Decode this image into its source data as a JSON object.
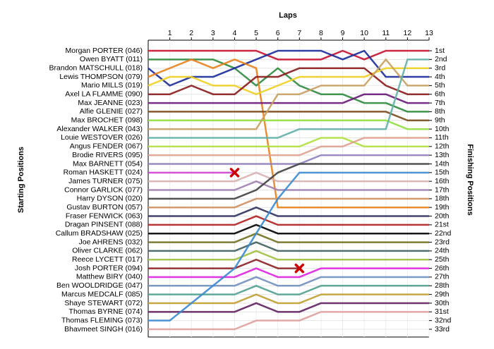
{
  "chart_data": {
    "type": "lapchart",
    "title": "Laps",
    "y_label": "Starting Positions",
    "y2_label": "Finishing Positions",
    "x": [
      0,
      1,
      2,
      3,
      4,
      5,
      6,
      7,
      8,
      9,
      10,
      11,
      12,
      13
    ],
    "xlim": [
      0,
      13
    ],
    "xticks": [
      1,
      2,
      3,
      4,
      5,
      6,
      7,
      8,
      9,
      10,
      11,
      12,
      13
    ],
    "ylim": [
      33,
      1
    ],
    "grid": true,
    "yticks": [
      {
        "value": 1,
        "label": "1st"
      },
      {
        "value": 2,
        "label": "2nd"
      },
      {
        "value": 3,
        "label": "3rd"
      },
      {
        "value": 4,
        "label": "4th"
      },
      {
        "value": 5,
        "label": "5th"
      },
      {
        "value": 6,
        "label": "6th"
      },
      {
        "value": 7,
        "label": "7th"
      },
      {
        "value": 8,
        "label": "8th"
      },
      {
        "value": 9,
        "label": "9th"
      },
      {
        "value": 10,
        "label": "10th"
      },
      {
        "value": 11,
        "label": "11th"
      },
      {
        "value": 12,
        "label": "12th"
      },
      {
        "value": 13,
        "label": "13th"
      },
      {
        "value": 14,
        "label": "14th"
      },
      {
        "value": 15,
        "label": "15th"
      },
      {
        "value": 16,
        "label": "16th"
      },
      {
        "value": 17,
        "label": "17th"
      },
      {
        "value": 18,
        "label": "18th"
      },
      {
        "value": 19,
        "label": "19th"
      },
      {
        "value": 20,
        "label": "20th"
      },
      {
        "value": 21,
        "label": "21st"
      },
      {
        "value": 22,
        "label": "22nd"
      },
      {
        "value": 23,
        "label": "23rd"
      },
      {
        "value": 24,
        "label": "24th"
      },
      {
        "value": 25,
        "label": "25th"
      },
      {
        "value": 26,
        "label": "26th"
      },
      {
        "value": 27,
        "label": "27th"
      },
      {
        "value": 28,
        "label": "28th"
      },
      {
        "value": 29,
        "label": "29th"
      },
      {
        "value": 30,
        "label": "30th"
      },
      {
        "value": 31,
        "label": "31st"
      },
      {
        "value": 32,
        "label": "32nd"
      },
      {
        "value": 33,
        "label": "33rd"
      }
    ],
    "series": [
      {
        "name": "Morgan PORTER (046)",
        "color": "#c8102e",
        "values": [
          1,
          1,
          1,
          1,
          1,
          1,
          2,
          2,
          2,
          1,
          2,
          1,
          1,
          1
        ]
      },
      {
        "name": "Owen BYATT (011)",
        "color": "#2e8b3e",
        "values": [
          2,
          2,
          2,
          2,
          3,
          5,
          3,
          5,
          6,
          6,
          7,
          7,
          8,
          8
        ]
      },
      {
        "name": "Brandon MATSCHULL (018)",
        "color": "#1a2a9a",
        "values": [
          3,
          5,
          4,
          4,
          3,
          2,
          1,
          1,
          1,
          2,
          1,
          4,
          4,
          4
        ]
      },
      {
        "name": "Lewis THOMPSON (079)",
        "color": "#e8821e",
        "values": [
          4,
          3,
          2,
          3,
          2,
          3,
          19,
          19,
          19,
          19,
          19,
          19,
          19,
          19
        ]
      },
      {
        "name": "Mario MILLS (019)",
        "color": "#f0d020",
        "values": [
          5,
          4,
          4,
          5,
          5,
          6,
          5,
          4,
          4,
          4,
          4,
          3,
          3,
          3
        ]
      },
      {
        "name": "Axel LA FLAMME (090)",
        "color": "#8b1a1a",
        "values": [
          6,
          6,
          5,
          6,
          6,
          4,
          4,
          3,
          3,
          3,
          3,
          5,
          6,
          6
        ]
      },
      {
        "name": "Max JEANNE (023)",
        "color": "#6a1a7a",
        "values": [
          7,
          7,
          7,
          7,
          7,
          7,
          7,
          7,
          7,
          7,
          6,
          6,
          7,
          7
        ]
      },
      {
        "name": "Alfie GLENIE (027)",
        "color": "#7a4a1a",
        "values": [
          8,
          8,
          8,
          8,
          8,
          8,
          8,
          8,
          8,
          8,
          8,
          8,
          9,
          9
        ]
      },
      {
        "name": "Max BROCHET (098)",
        "color": "#90e040",
        "values": [
          9,
          9,
          9,
          9,
          9,
          9,
          9,
          9,
          9,
          9,
          9,
          9,
          10,
          10
        ]
      },
      {
        "name": "Alexander WALKER (043)",
        "color": "#c8a060",
        "values": [
          10,
          10,
          10,
          10,
          10,
          10,
          6,
          6,
          5,
          5,
          5,
          2,
          5,
          5
        ]
      },
      {
        "name": "Louie WESTOVER (026)",
        "color": "#60b0a8",
        "values": [
          11,
          11,
          11,
          11,
          11,
          11,
          11,
          10,
          10,
          10,
          10,
          10,
          2,
          2
        ]
      },
      {
        "name": "Angus FENDER (067)",
        "color": "#b0e040",
        "values": [
          12,
          12,
          12,
          12,
          12,
          12,
          12,
          12,
          11,
          11,
          12,
          12,
          12,
          12
        ]
      },
      {
        "name": "Brodie RIVERS (095)",
        "color": "#e0a090",
        "values": [
          13,
          13,
          13,
          13,
          13,
          13,
          13,
          13,
          12,
          12,
          11,
          11,
          11,
          11
        ]
      },
      {
        "name": "Max BARNETT (054)",
        "color": "#9080c0",
        "values": [
          14,
          14,
          14,
          14,
          14,
          14,
          14,
          14,
          13,
          13,
          13,
          13,
          13,
          13
        ]
      },
      {
        "name": "Roman HASKETT (024)",
        "color": "#d040d0",
        "retired": true,
        "values": [
          15,
          15,
          15,
          15,
          15,
          null,
          null,
          null,
          null,
          null,
          null,
          null,
          null,
          null
        ]
      },
      {
        "name": "James TURNER (075)",
        "color": "#d8b0b0",
        "values": [
          16,
          16,
          16,
          16,
          16,
          15,
          16,
          16,
          16,
          16,
          16,
          16,
          16,
          16
        ]
      },
      {
        "name": "Connor GARLICK (077)",
        "color": "#a080b0",
        "values": [
          17,
          17,
          17,
          17,
          17,
          16,
          17,
          17,
          17,
          17,
          17,
          17,
          17,
          17
        ]
      },
      {
        "name": "Harry DYSON (020)",
        "color": "#404040",
        "values": [
          18,
          18,
          18,
          18,
          18,
          17,
          15,
          14,
          14,
          14,
          14,
          14,
          14,
          14
        ]
      },
      {
        "name": "Gustav BURTON (057)",
        "color": "#d09060",
        "values": [
          19,
          19,
          19,
          19,
          19,
          18,
          18,
          18,
          18,
          18,
          18,
          18,
          18,
          18
        ]
      },
      {
        "name": "Fraser FENWICK (063)",
        "color": "#303060",
        "values": [
          20,
          20,
          20,
          20,
          20,
          19,
          20,
          20,
          20,
          20,
          20,
          20,
          20,
          20
        ]
      },
      {
        "name": "Dragan PINSENT (088)",
        "color": "#b02020",
        "values": [
          21,
          21,
          21,
          21,
          21,
          20,
          21,
          21,
          21,
          21,
          21,
          21,
          21,
          21
        ]
      },
      {
        "name": "Callum BRADSHAW (025)",
        "color": "#000000",
        "values": [
          22,
          22,
          22,
          22,
          22,
          21,
          22,
          22,
          22,
          22,
          22,
          22,
          22,
          22
        ]
      },
      {
        "name": "Joe AHRENS (032)",
        "color": "#707020",
        "values": [
          23,
          23,
          23,
          23,
          23,
          22,
          23,
          23,
          23,
          23,
          23,
          23,
          23,
          23
        ]
      },
      {
        "name": "Oliver CLARKE (062)",
        "color": "#406060",
        "values": [
          24,
          24,
          24,
          24,
          24,
          23,
          24,
          24,
          24,
          24,
          24,
          24,
          24,
          24
        ]
      },
      {
        "name": "Reece LYCETT (017)",
        "color": "#a0c040",
        "values": [
          25,
          25,
          25,
          25,
          25,
          24,
          25,
          25,
          25,
          25,
          25,
          25,
          25,
          25
        ]
      },
      {
        "name": "Josh PORTER (094)",
        "color": "#8b2020",
        "retired": true,
        "values": [
          26,
          26,
          26,
          26,
          26,
          25,
          26,
          26,
          null,
          null,
          null,
          null,
          null,
          null
        ]
      },
      {
        "name": "Matthew BIRY (040)",
        "color": "#e020e0",
        "values": [
          27,
          27,
          27,
          27,
          27,
          26,
          27,
          27,
          26,
          26,
          26,
          26,
          26,
          26
        ]
      },
      {
        "name": "Ben WOOLDRIDGE (047)",
        "color": "#7090c0",
        "values": [
          28,
          28,
          28,
          28,
          28,
          27,
          28,
          28,
          27,
          27,
          27,
          27,
          27,
          27
        ]
      },
      {
        "name": "Marcus MEDCALF (085)",
        "color": "#50a090",
        "values": [
          29,
          29,
          29,
          29,
          29,
          28,
          29,
          29,
          28,
          28,
          28,
          28,
          28,
          28
        ]
      },
      {
        "name": "Shaye STEWART (072)",
        "color": "#c0a030",
        "values": [
          30,
          30,
          30,
          30,
          30,
          29,
          30,
          30,
          29,
          29,
          29,
          29,
          29,
          29
        ]
      },
      {
        "name": "Thomas BYRNE (074)",
        "color": "#602060",
        "values": [
          31,
          31,
          31,
          31,
          31,
          30,
          31,
          31,
          30,
          30,
          30,
          30,
          30,
          30
        ]
      },
      {
        "name": "Thomas FLEMING (073)",
        "color": "#3a8ad0",
        "values": [
          32,
          32,
          30,
          28,
          26,
          22,
          18,
          15,
          15,
          15,
          15,
          15,
          15,
          15
        ]
      },
      {
        "name": "Bhavmeet SINGH (016)",
        "color": "#e0a0a0",
        "values": [
          33,
          33,
          33,
          33,
          33,
          32,
          32,
          32,
          31,
          31,
          31,
          31,
          31,
          31
        ]
      }
    ]
  }
}
